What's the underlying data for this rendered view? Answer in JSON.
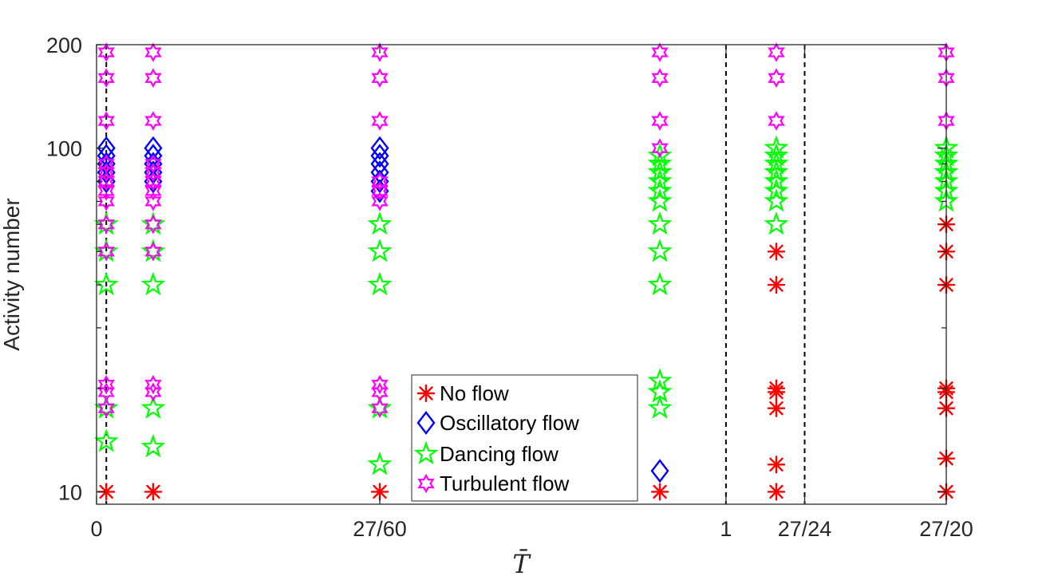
{
  "chart_data": {
    "type": "scatter",
    "title": "",
    "xlabel": "T̄",
    "ylabel": "Activity number",
    "xlim": [
      0,
      1.35
    ],
    "ylim": [
      9.2,
      200
    ],
    "yscale": "log",
    "x_ticks": [
      {
        "value": 0,
        "label": "0"
      },
      {
        "value": 0.45,
        "label": "27/60"
      },
      {
        "value": 1.0,
        "label": "1"
      },
      {
        "value": 1.125,
        "label": "27/24"
      },
      {
        "value": 1.35,
        "label": "27/20"
      }
    ],
    "y_ticks": [
      {
        "value": 10,
        "label": "10"
      },
      {
        "value": 100,
        "label": "100"
      },
      {
        "value": 200,
        "label": "200"
      }
    ],
    "vertical_lines": [
      0.0155,
      1.0,
      1.125
    ],
    "grid": false,
    "legend_position": "lower-center",
    "colors": {
      "no_flow": "#ff0000",
      "oscillatory": "#0000ff",
      "dancing": "#00ff00",
      "turbulent": "#ff00ff",
      "axis": "#262626"
    },
    "series": [
      {
        "name": "No flow",
        "marker": "asterisk",
        "color": "#ff0000",
        "points": [
          [
            0.0155,
            10
          ],
          [
            0.09,
            10
          ],
          [
            0.45,
            10
          ],
          [
            0.895,
            10
          ],
          [
            1.08,
            10
          ],
          [
            1.08,
            12
          ],
          [
            1.08,
            17.5
          ],
          [
            1.08,
            19.5
          ],
          [
            1.08,
            20
          ],
          [
            1.08,
            40
          ],
          [
            1.08,
            50
          ],
          [
            1.35,
            10
          ],
          [
            1.35,
            12.5
          ],
          [
            1.35,
            17.5
          ],
          [
            1.35,
            19.5
          ],
          [
            1.35,
            20
          ],
          [
            1.35,
            40
          ],
          [
            1.35,
            50
          ],
          [
            1.35,
            60
          ]
        ]
      },
      {
        "name": "Oscillatory flow",
        "marker": "diamond",
        "color": "#0000ff",
        "points": [
          [
            0.0155,
            80
          ],
          [
            0.0155,
            85
          ],
          [
            0.0155,
            90
          ],
          [
            0.0155,
            95
          ],
          [
            0.0155,
            100
          ],
          [
            0.09,
            80
          ],
          [
            0.09,
            85
          ],
          [
            0.09,
            90
          ],
          [
            0.09,
            95
          ],
          [
            0.09,
            100
          ],
          [
            0.45,
            75
          ],
          [
            0.45,
            80
          ],
          [
            0.45,
            85
          ],
          [
            0.45,
            90
          ],
          [
            0.45,
            95
          ],
          [
            0.45,
            100
          ],
          [
            0.895,
            11.5
          ]
        ]
      },
      {
        "name": "Dancing flow",
        "marker": "pentagram",
        "color": "#00ff00",
        "points": [
          [
            0.0155,
            14
          ],
          [
            0.0155,
            17.5
          ],
          [
            0.0155,
            40
          ],
          [
            0.0155,
            50
          ],
          [
            0.0155,
            60
          ],
          [
            0.09,
            13.5
          ],
          [
            0.09,
            17.5
          ],
          [
            0.09,
            40
          ],
          [
            0.09,
            50
          ],
          [
            0.09,
            60
          ],
          [
            0.45,
            12
          ],
          [
            0.45,
            17.5
          ],
          [
            0.45,
            40
          ],
          [
            0.45,
            50
          ],
          [
            0.45,
            60
          ],
          [
            0.895,
            17.5
          ],
          [
            0.895,
            19.5
          ],
          [
            0.895,
            21
          ],
          [
            0.895,
            40
          ],
          [
            0.895,
            50
          ],
          [
            0.895,
            60
          ],
          [
            0.895,
            70
          ],
          [
            0.895,
            75
          ],
          [
            0.895,
            80
          ],
          [
            0.895,
            85
          ],
          [
            0.895,
            90
          ],
          [
            0.895,
            95
          ],
          [
            1.08,
            60
          ],
          [
            1.08,
            70
          ],
          [
            1.08,
            75
          ],
          [
            1.08,
            80
          ],
          [
            1.08,
            85
          ],
          [
            1.08,
            90
          ],
          [
            1.08,
            95
          ],
          [
            1.08,
            100
          ],
          [
            1.35,
            70
          ],
          [
            1.35,
            75
          ],
          [
            1.35,
            80
          ],
          [
            1.35,
            85
          ],
          [
            1.35,
            90
          ],
          [
            1.35,
            95
          ],
          [
            1.35,
            100
          ]
        ]
      },
      {
        "name": "Turbulent flow",
        "marker": "hexagram",
        "color": "#ff00ff",
        "points": [
          [
            0.0155,
            17.5
          ],
          [
            0.0155,
            19.5
          ],
          [
            0.0155,
            20.5
          ],
          [
            0.0155,
            50
          ],
          [
            0.0155,
            60
          ],
          [
            0.0155,
            70
          ],
          [
            0.0155,
            75
          ],
          [
            0.0155,
            80
          ],
          [
            0.0155,
            85
          ],
          [
            0.0155,
            90
          ],
          [
            0.0155,
            120
          ],
          [
            0.0155,
            160
          ],
          [
            0.0155,
            190
          ],
          [
            0.09,
            19.5
          ],
          [
            0.09,
            20.5
          ],
          [
            0.09,
            50
          ],
          [
            0.09,
            60
          ],
          [
            0.09,
            70
          ],
          [
            0.09,
            75
          ],
          [
            0.09,
            80
          ],
          [
            0.09,
            85
          ],
          [
            0.09,
            90
          ],
          [
            0.09,
            120
          ],
          [
            0.09,
            160
          ],
          [
            0.09,
            190
          ],
          [
            0.45,
            17.5
          ],
          [
            0.45,
            19.5
          ],
          [
            0.45,
            20.5
          ],
          [
            0.45,
            70
          ],
          [
            0.45,
            75
          ],
          [
            0.45,
            80
          ],
          [
            0.45,
            120
          ],
          [
            0.45,
            160
          ],
          [
            0.45,
            190
          ],
          [
            0.895,
            100
          ],
          [
            0.895,
            120
          ],
          [
            0.895,
            160
          ],
          [
            0.895,
            190
          ],
          [
            1.08,
            120
          ],
          [
            1.08,
            160
          ],
          [
            1.08,
            190
          ],
          [
            1.35,
            120
          ],
          [
            1.35,
            160
          ],
          [
            1.35,
            190
          ]
        ]
      }
    ]
  }
}
